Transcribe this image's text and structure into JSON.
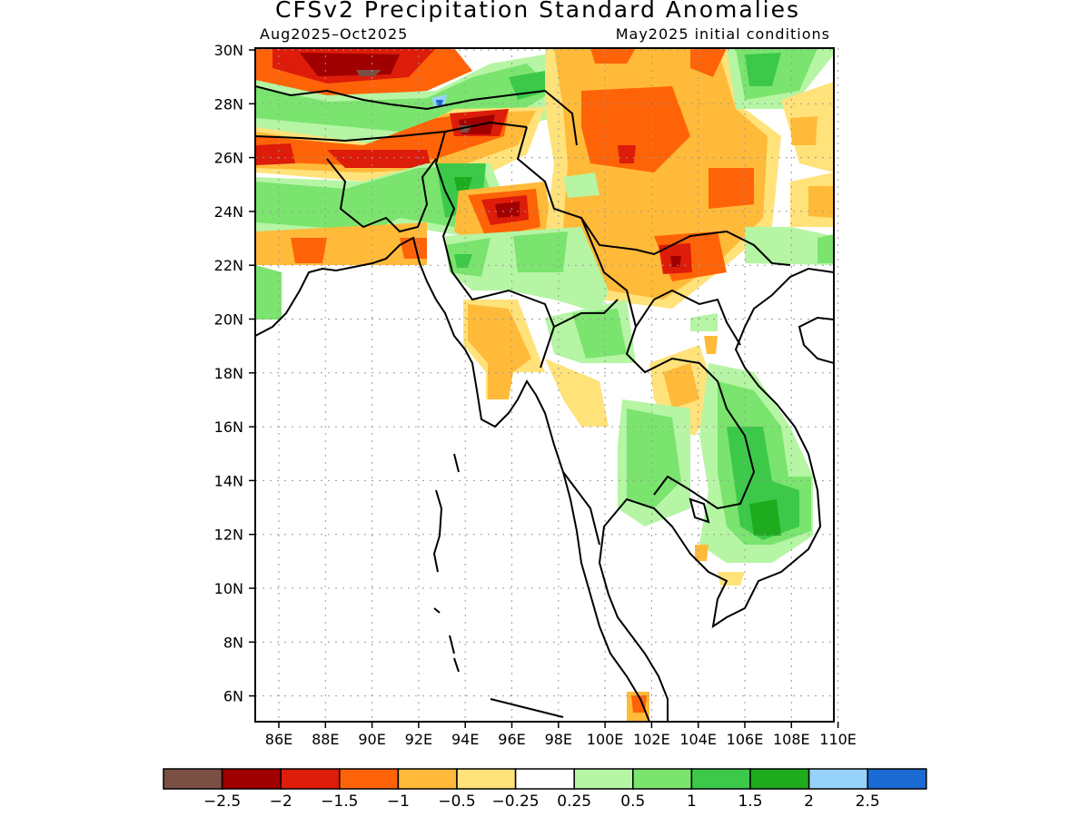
{
  "title": "CFSv2 Precipitation Standard Anomalies",
  "subtitle_left": "Aug2025–Oct2025",
  "subtitle_right": "May2025 initial conditions",
  "lat_labels": [
    "30N",
    "28N",
    "26N",
    "24N",
    "22N",
    "20N",
    "18N",
    "16N",
    "14N",
    "12N",
    "10N",
    "8N",
    "6N"
  ],
  "lon_labels": [
    "86E",
    "88E",
    "90E",
    "92E",
    "94E",
    "96E",
    "98E",
    "100E",
    "102E",
    "104E",
    "106E",
    "108E",
    "110E"
  ],
  "colorbar": {
    "colors": [
      "#7a5044",
      "#a00000",
      "#dd1c0a",
      "#ff6308",
      "#ffba3a",
      "#ffe27a",
      "#ffffff",
      "#b5f5a4",
      "#7ae46e",
      "#3cc94a",
      "#1eab1e",
      "#96d2fa",
      "#1b6ad3"
    ],
    "labels": [
      "−2.5",
      "−2",
      "−1.5",
      "−1",
      "−0.5",
      "−0.25",
      "0.25",
      "0.5",
      "1",
      "1.5",
      "2",
      "2.5"
    ]
  }
}
